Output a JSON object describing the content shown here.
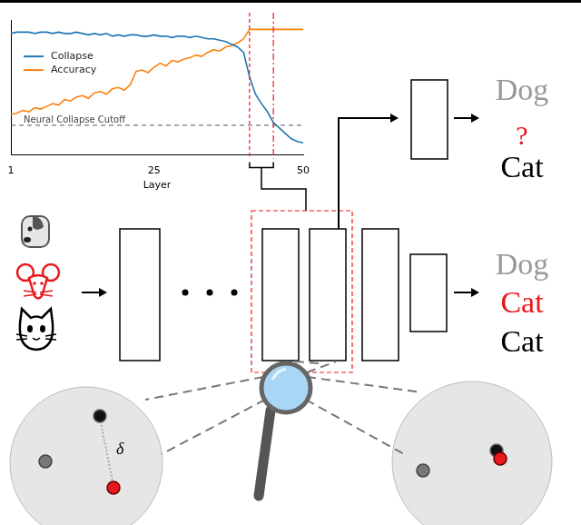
{
  "chart_data": {
    "type": "line",
    "x_label": "Layer",
    "x": [
      1,
      2,
      3,
      4,
      5,
      6,
      7,
      8,
      9,
      10,
      11,
      12,
      13,
      14,
      15,
      16,
      17,
      18,
      19,
      20,
      21,
      22,
      23,
      24,
      25,
      26,
      27,
      28,
      29,
      30,
      31,
      32,
      33,
      34,
      35,
      36,
      37,
      38,
      39,
      40,
      41,
      42,
      43,
      44,
      45,
      46,
      47,
      48,
      49,
      50
    ],
    "series": [
      {
        "name": "Collapse",
        "color": "#1f77b4",
        "line_style": "solid",
        "marker": "none",
        "values": [
          0.9,
          0.91,
          0.91,
          0.91,
          0.9,
          0.91,
          0.91,
          0.9,
          0.91,
          0.9,
          0.9,
          0.91,
          0.9,
          0.89,
          0.9,
          0.89,
          0.9,
          0.88,
          0.89,
          0.88,
          0.89,
          0.89,
          0.88,
          0.88,
          0.89,
          0.88,
          0.88,
          0.87,
          0.88,
          0.88,
          0.87,
          0.88,
          0.87,
          0.86,
          0.86,
          0.85,
          0.84,
          0.82,
          0.8,
          0.76,
          0.58,
          0.45,
          0.38,
          0.32,
          0.24,
          0.2,
          0.16,
          0.12,
          0.1,
          0.09
        ]
      },
      {
        "name": "Accuracy",
        "color": "#ff7f0e",
        "line_style": "solid",
        "marker": "none",
        "values": [
          0.3,
          0.31,
          0.33,
          0.32,
          0.35,
          0.34,
          0.36,
          0.38,
          0.37,
          0.41,
          0.4,
          0.43,
          0.44,
          0.42,
          0.46,
          0.47,
          0.45,
          0.49,
          0.5,
          0.48,
          0.52,
          0.62,
          0.63,
          0.61,
          0.65,
          0.68,
          0.66,
          0.7,
          0.69,
          0.71,
          0.72,
          0.74,
          0.73,
          0.76,
          0.78,
          0.77,
          0.8,
          0.81,
          0.83,
          0.86,
          0.93,
          0.93,
          0.93,
          0.93,
          0.93,
          0.93,
          0.93,
          0.93,
          0.93,
          0.93
        ]
      }
    ],
    "xlim": [
      1,
      50
    ],
    "xticks": [
      1,
      25,
      50
    ],
    "ylim": [
      0,
      1
    ],
    "tick_labels": "x",
    "grid": false,
    "legend": "left",
    "cutoff": {
      "value": 0.22,
      "label": "Neural Collapse Cutoff"
    },
    "vertical_lines": [
      41,
      45
    ]
  },
  "diagram": {
    "probe_outputs": [
      "Dog",
      "?",
      "Cat"
    ],
    "final_outputs": [
      "Dog",
      "Cat",
      "Cat"
    ],
    "distance_label": "δ"
  }
}
